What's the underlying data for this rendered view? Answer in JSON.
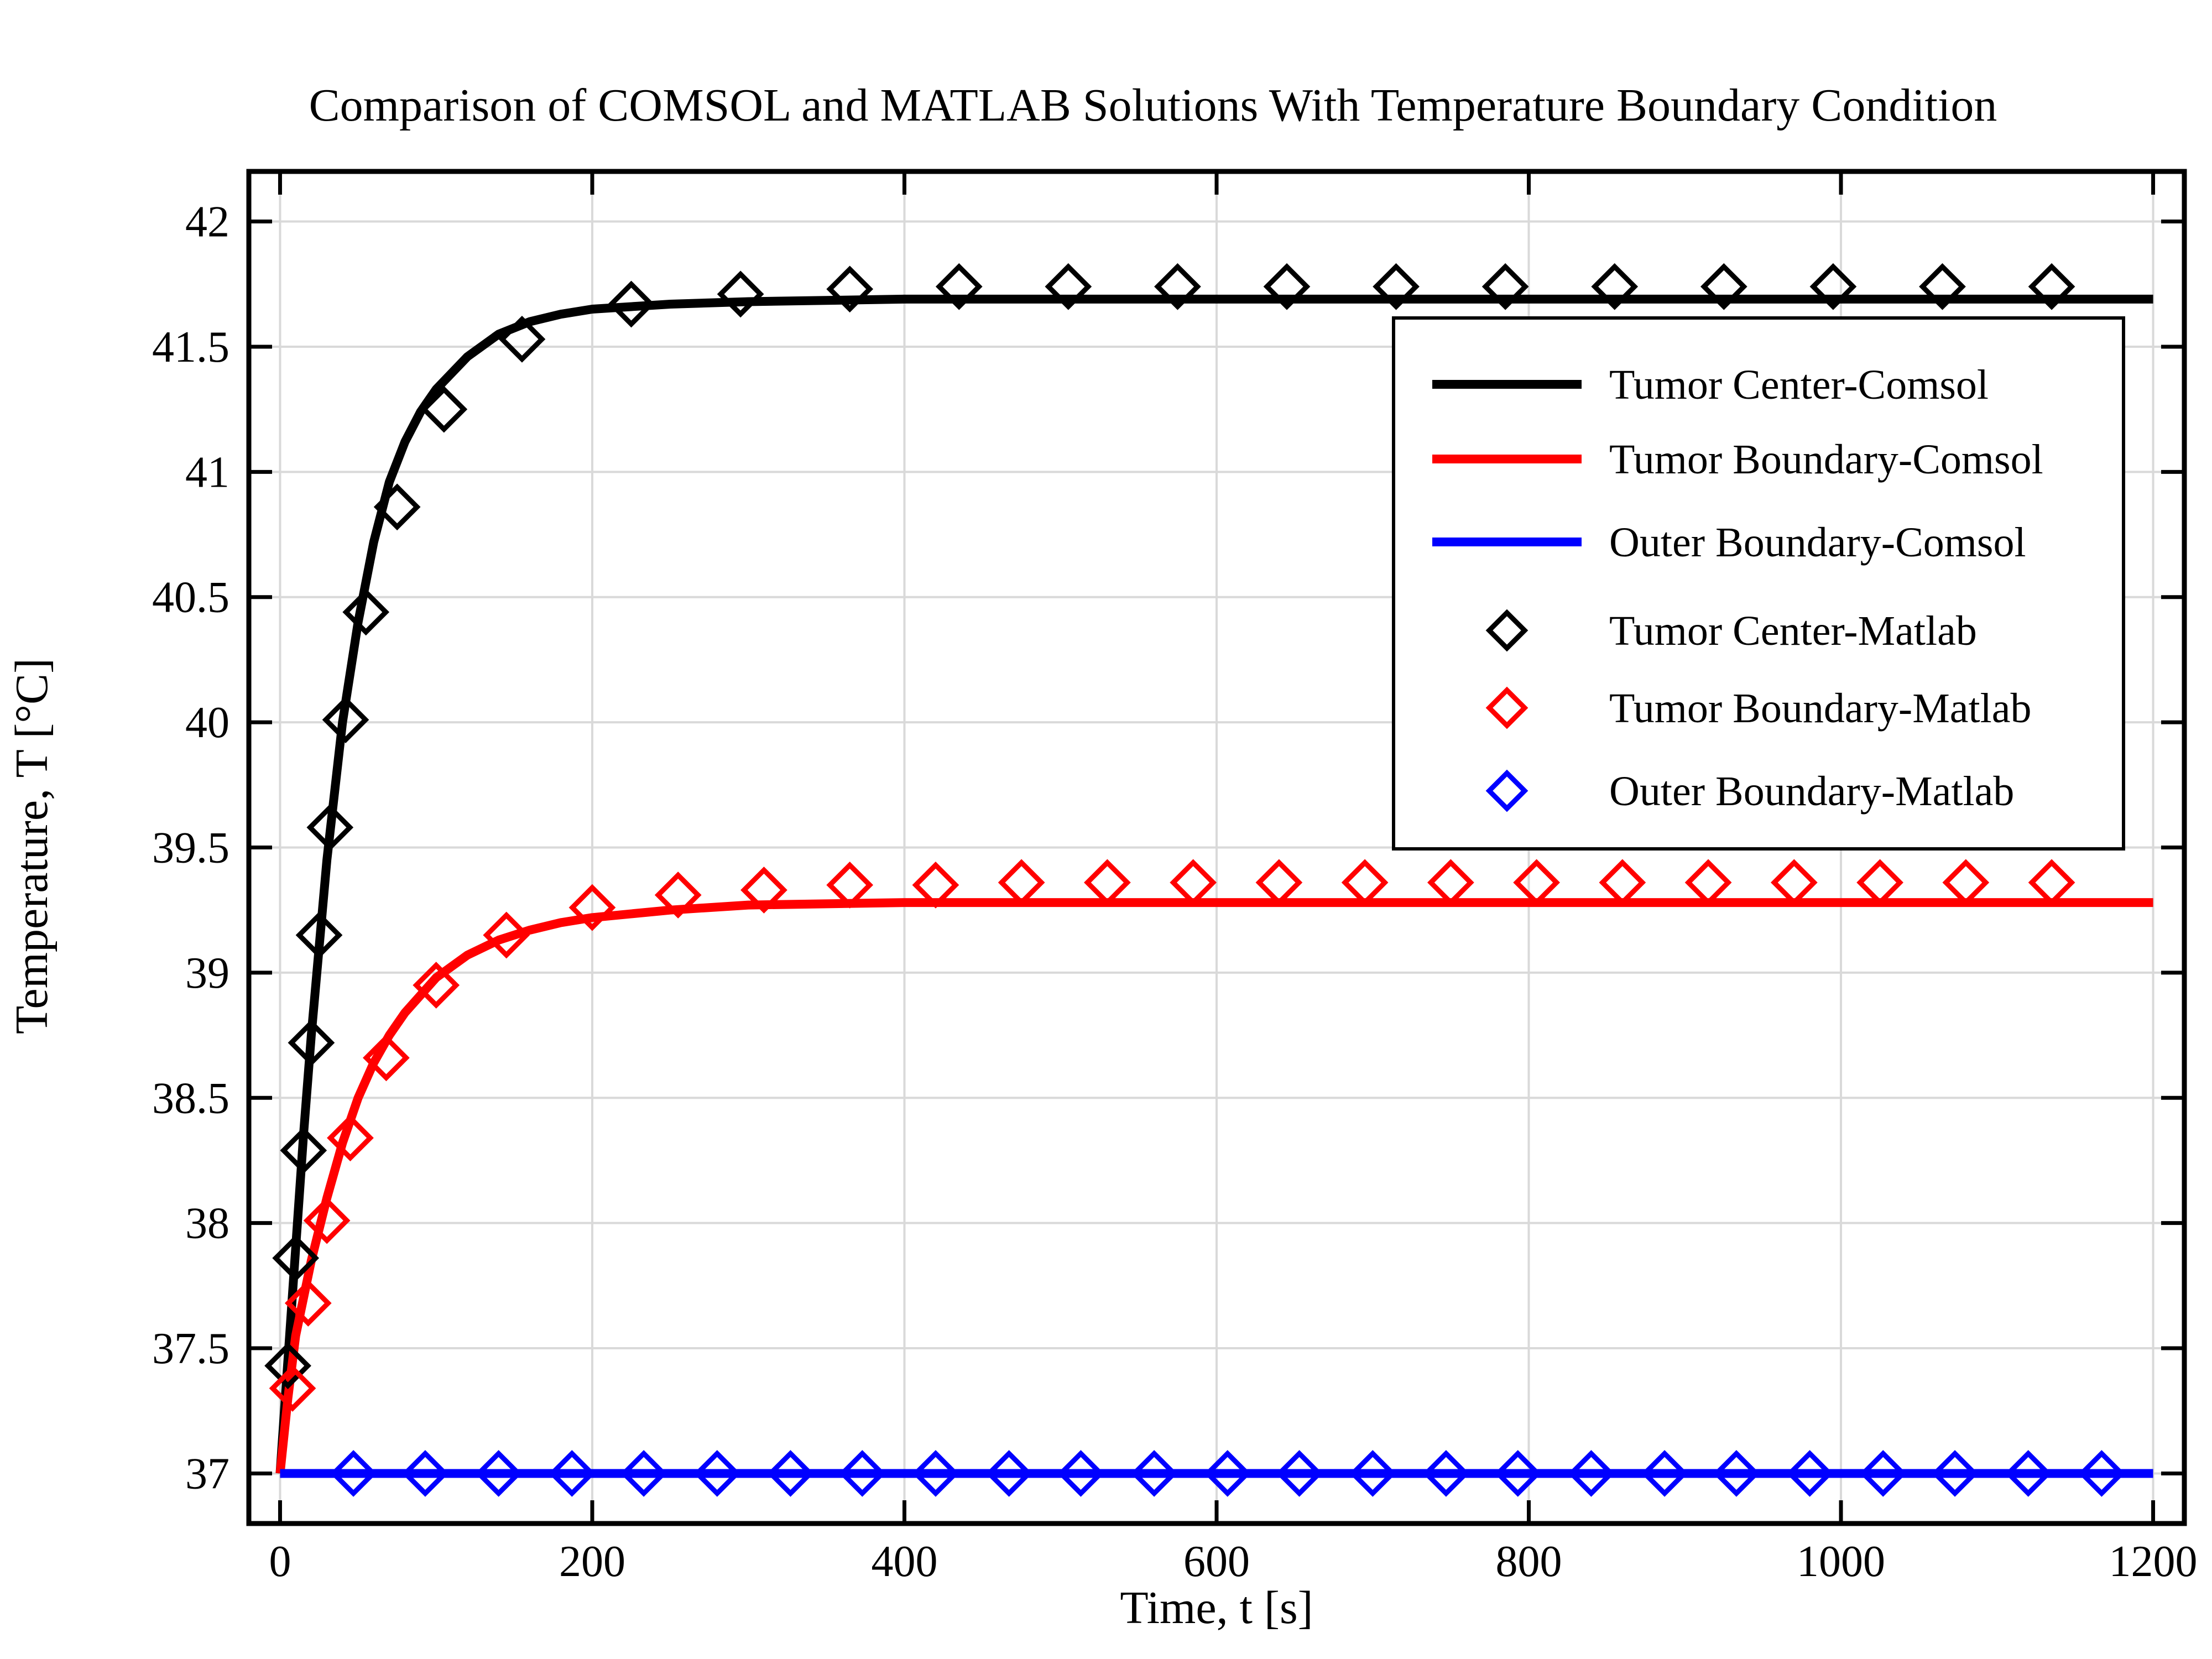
{
  "chart_data": {
    "type": "line",
    "title": "Comparison of COMSOL and MATLAB Solutions With Temperature Boundary Condition",
    "xlabel": "Time, t [s]",
    "ylabel": "Temperature, T [°C]",
    "xlim": [
      -20,
      1220
    ],
    "ylim": [
      36.8,
      42.2
    ],
    "x_ticks": [
      0,
      200,
      400,
      600,
      800,
      1000,
      1200
    ],
    "y_ticks": [
      37,
      37.5,
      38,
      38.5,
      39,
      39.5,
      40,
      40.5,
      41,
      41.5,
      42
    ],
    "x_tick_labels": [
      "0",
      "200",
      "400",
      "600",
      "800",
      "1000",
      "1200"
    ],
    "y_tick_labels": [
      "37",
      "37.5",
      "38",
      "38.5",
      "39",
      "39.5",
      "40",
      "40.5",
      "41",
      "41.5",
      "42"
    ],
    "grid": true,
    "legend_position": "top-right",
    "series": [
      {
        "name": "Tumor Center-Comsol",
        "style": "line",
        "color": "#000000",
        "x": [
          0,
          5,
          10,
          15,
          20,
          25,
          30,
          40,
          50,
          60,
          70,
          80,
          90,
          100,
          120,
          140,
          160,
          180,
          200,
          250,
          300,
          400,
          500,
          600,
          800,
          1000,
          1200
        ],
        "y": [
          37.0,
          37.45,
          37.9,
          38.35,
          38.75,
          39.1,
          39.45,
          40.0,
          40.4,
          40.72,
          40.96,
          41.12,
          41.24,
          41.33,
          41.46,
          41.55,
          41.6,
          41.63,
          41.65,
          41.67,
          41.68,
          41.69,
          41.69,
          41.69,
          41.69,
          41.69,
          41.69
        ]
      },
      {
        "name": "Tumor Boundary-Comsol",
        "style": "line",
        "color": "#ff0000",
        "x": [
          0,
          5,
          10,
          20,
          30,
          40,
          50,
          60,
          70,
          80,
          100,
          120,
          140,
          160,
          180,
          200,
          250,
          300,
          400,
          500,
          600,
          800,
          1000,
          1200
        ],
        "y": [
          37.0,
          37.3,
          37.55,
          37.85,
          38.1,
          38.32,
          38.5,
          38.64,
          38.75,
          38.84,
          38.98,
          39.07,
          39.13,
          39.17,
          39.2,
          39.22,
          39.25,
          39.27,
          39.28,
          39.28,
          39.28,
          39.28,
          39.28,
          39.28
        ]
      },
      {
        "name": "Outer Boundary-Comsol",
        "style": "line",
        "color": "#0000ff",
        "x": [
          0,
          1200
        ],
        "y": [
          37.0,
          37.0
        ]
      },
      {
        "name": "Tumor Center-Matlab",
        "style": "marker",
        "marker": "diamond",
        "color": "#000000",
        "x": [
          5,
          10,
          15,
          20,
          25,
          32,
          42,
          55,
          75,
          105,
          155,
          225,
          295,
          365,
          435,
          505,
          575,
          645,
          715,
          785,
          855,
          925,
          995,
          1065,
          1135
        ],
        "y": [
          37.43,
          37.86,
          38.29,
          38.72,
          39.15,
          39.58,
          40.01,
          40.44,
          40.86,
          41.25,
          41.53,
          41.67,
          41.71,
          41.73,
          41.74,
          41.74,
          41.74,
          41.74,
          41.74,
          41.74,
          41.74,
          41.74,
          41.74,
          41.74,
          41.74
        ]
      },
      {
        "name": "Tumor Boundary-Matlab",
        "style": "marker",
        "marker": "diamond",
        "color": "#ff0000",
        "x": [
          8,
          18,
          30,
          45,
          68,
          100,
          145,
          200,
          255,
          310,
          365,
          420,
          475,
          530,
          585,
          640,
          695,
          750,
          805,
          860,
          915,
          970,
          1025,
          1080,
          1135
        ],
        "y": [
          37.34,
          37.68,
          38.01,
          38.34,
          38.66,
          38.95,
          39.15,
          39.26,
          39.31,
          39.33,
          39.35,
          39.35,
          39.36,
          39.36,
          39.36,
          39.36,
          39.36,
          39.36,
          39.36,
          39.36,
          39.36,
          39.36,
          39.36,
          39.36,
          39.36
        ]
      },
      {
        "name": "Outer Boundary-Matlab",
        "style": "marker",
        "marker": "diamond",
        "color": "#0000ff",
        "x": [
          47,
          93,
          140,
          187,
          233,
          280,
          327,
          373,
          420,
          467,
          513,
          560,
          607,
          653,
          700,
          747,
          793,
          840,
          887,
          933,
          980,
          1027,
          1073,
          1120,
          1167
        ],
        "y": [
          37.0,
          37.0,
          37.0,
          37.0,
          37.0,
          37.0,
          37.0,
          37.0,
          37.0,
          37.0,
          37.0,
          37.0,
          37.0,
          37.0,
          37.0,
          37.0,
          37.0,
          37.0,
          37.0,
          37.0,
          37.0,
          37.0,
          37.0,
          37.0,
          37.0
        ]
      }
    ]
  }
}
